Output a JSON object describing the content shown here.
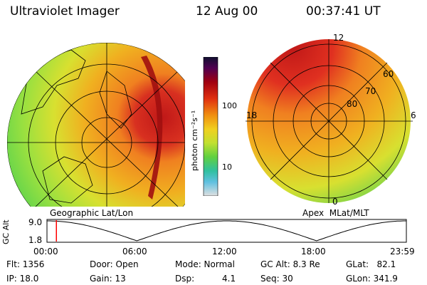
{
  "header": {
    "title": "Ultraviolet Imager",
    "date": "12 Aug 00",
    "time": "00:37:41 UT"
  },
  "left_panel": {
    "caption": "Geographic Lat/Lon"
  },
  "right_panel": {
    "caption": "Apex  MLat/MLT",
    "mlt_labels": {
      "top": "12",
      "left": "18",
      "right": "6",
      "bottom": "0"
    },
    "lat_labels": [
      "60",
      "70",
      "80"
    ]
  },
  "colorbar": {
    "unit": "photon cm⁻²s⁻¹",
    "ticks": [
      "100",
      "10"
    ]
  },
  "altitude_plot": {
    "ylabel": "GC Alt",
    "yticks": [
      "9.0",
      "1.8"
    ],
    "xticks": [
      "00:00",
      "06:00",
      "12:00",
      "18:00",
      "23:59"
    ],
    "marker_time_hours": 0.63,
    "marker_color": "#ff0000"
  },
  "info": {
    "flt": "Flt: 1356",
    "ip": "IP: 18.0",
    "door": "Door: Open",
    "gain": "Gain: 13",
    "mode": "Mode: Normal",
    "dsp_label": "Dsp:",
    "dsp_value": "4.1",
    "gcalt": "GC Alt: 8.3 Re",
    "seq": "Seq: 30",
    "glat": "GLat:   82.1",
    "glon": "GLon: 341.9"
  }
}
